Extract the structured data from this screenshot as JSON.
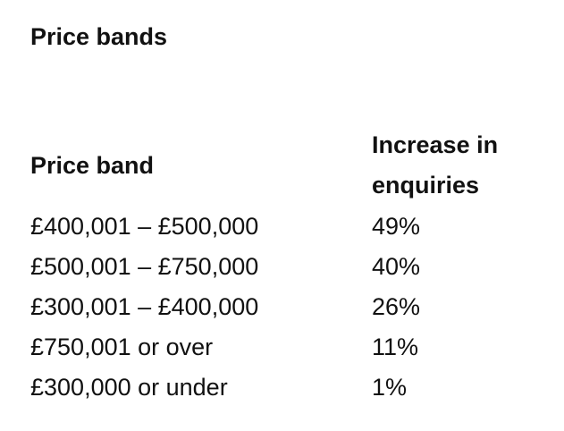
{
  "title": "Price bands",
  "table": {
    "header": [
      "Price band",
      "Increase in enquiries"
    ],
    "rows": [
      [
        "£400,001 – £500,000",
        "49%"
      ],
      [
        "£500,001 – £750,000",
        "40%"
      ],
      [
        "£300,001 – £400,000",
        "26%"
      ],
      [
        "£750,001 or over",
        "11%"
      ],
      [
        "£300,000 or under",
        "1%"
      ]
    ]
  }
}
